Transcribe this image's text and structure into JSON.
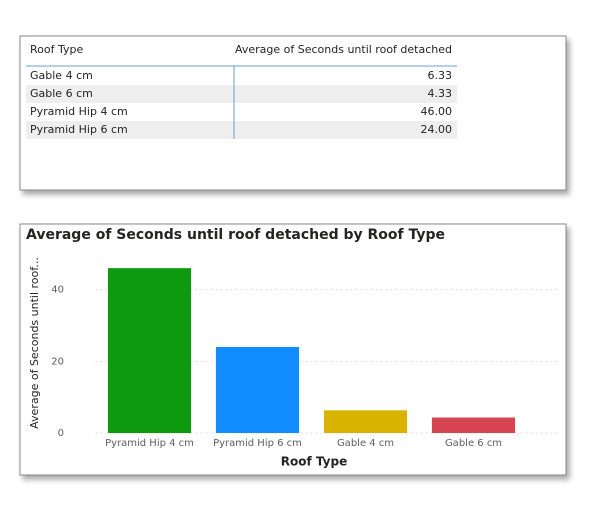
{
  "table": {
    "columns": [
      "Roof Type",
      "Average of Seconds until roof detached"
    ],
    "rows": [
      [
        "Gable 4 cm",
        "6.33"
      ],
      [
        "Gable 6 cm",
        "4.33"
      ],
      [
        "Pyramid Hip 4 cm",
        "46.00"
      ],
      [
        "Pyramid Hip 6 cm",
        "24.00"
      ]
    ]
  },
  "chart_data": {
    "type": "bar",
    "title": "Average of Seconds until roof detached by Roof Type",
    "x_label": "Roof Type",
    "y_label": "Average of Seconds until roof...",
    "categories": [
      "Pyramid Hip 4 cm",
      "Pyramid Hip 6 cm",
      "Gable 4 cm",
      "Gable 6 cm"
    ],
    "values": [
      46,
      24,
      6.33,
      4.33
    ],
    "colors": [
      "#0e9a0e",
      "#118dff",
      "#d9b300",
      "#d64550"
    ],
    "ylim": [
      0,
      48
    ],
    "yticks": [
      0,
      20,
      40
    ],
    "grid": true
  }
}
